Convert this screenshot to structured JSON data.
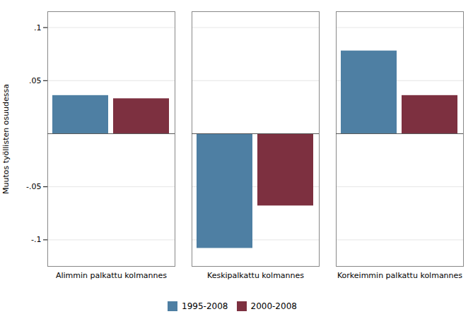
{
  "chart_data": {
    "type": "bar",
    "categories": [
      "Alimmin palkattu kolmannes",
      "Keskipalkattu kolmannes",
      "Korkeimmin palkattu kolmannes"
    ],
    "series": [
      {
        "name": "1995-2008",
        "color": "#4e7fa3",
        "values": [
          0.036,
          -0.108,
          0.078
        ]
      },
      {
        "name": "2000-2008",
        "color": "#7d3040",
        "values": [
          0.033,
          -0.068,
          0.036
        ]
      }
    ],
    "ylabel": "Muutos työllisten osuudessa",
    "ylim": [
      -0.125,
      0.115
    ],
    "yticks": [
      {
        "value": -0.1,
        "label": "-.1"
      },
      {
        "value": -0.05,
        "label": "-.05"
      },
      {
        "value": 0.05,
        "label": ".05"
      },
      {
        "value": 0.1,
        "label": ".1"
      }
    ],
    "grid": true,
    "legend": "bottom"
  }
}
